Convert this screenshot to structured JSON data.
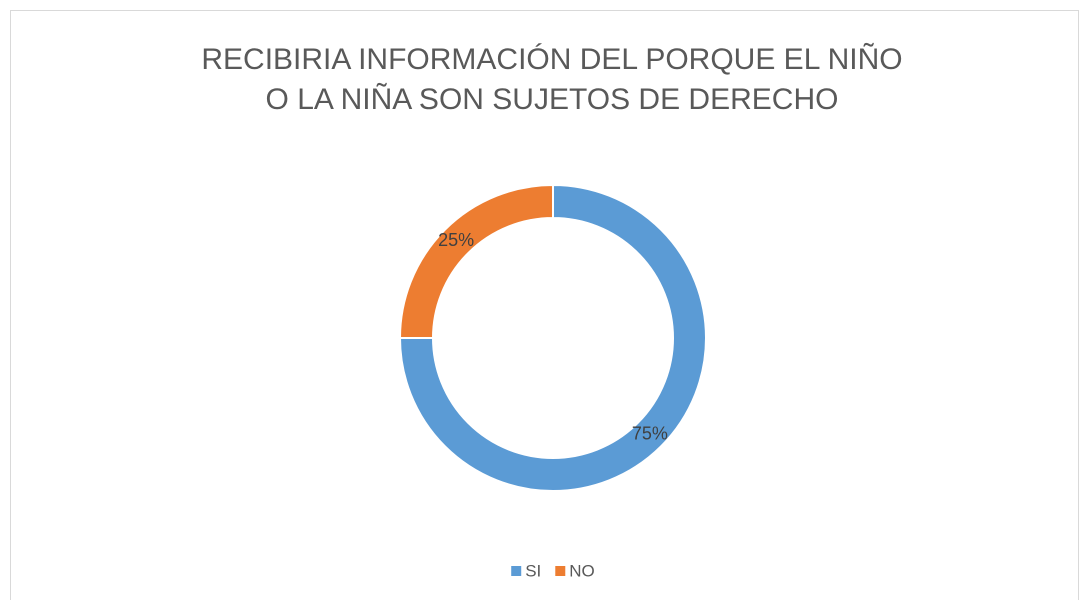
{
  "chart_data": {
    "type": "donut",
    "title": "RECIBIRIA INFORMACIÓN DEL PORQUE EL NIÑO O LA NIÑA SON SUJETOS DE DERECHO",
    "categories": [
      "SI",
      "NO"
    ],
    "values": [
      75,
      25
    ],
    "value_labels": [
      "75%",
      "25%"
    ],
    "colors": [
      "#5b9bd5",
      "#ed7d31"
    ],
    "legend": "bottom"
  }
}
